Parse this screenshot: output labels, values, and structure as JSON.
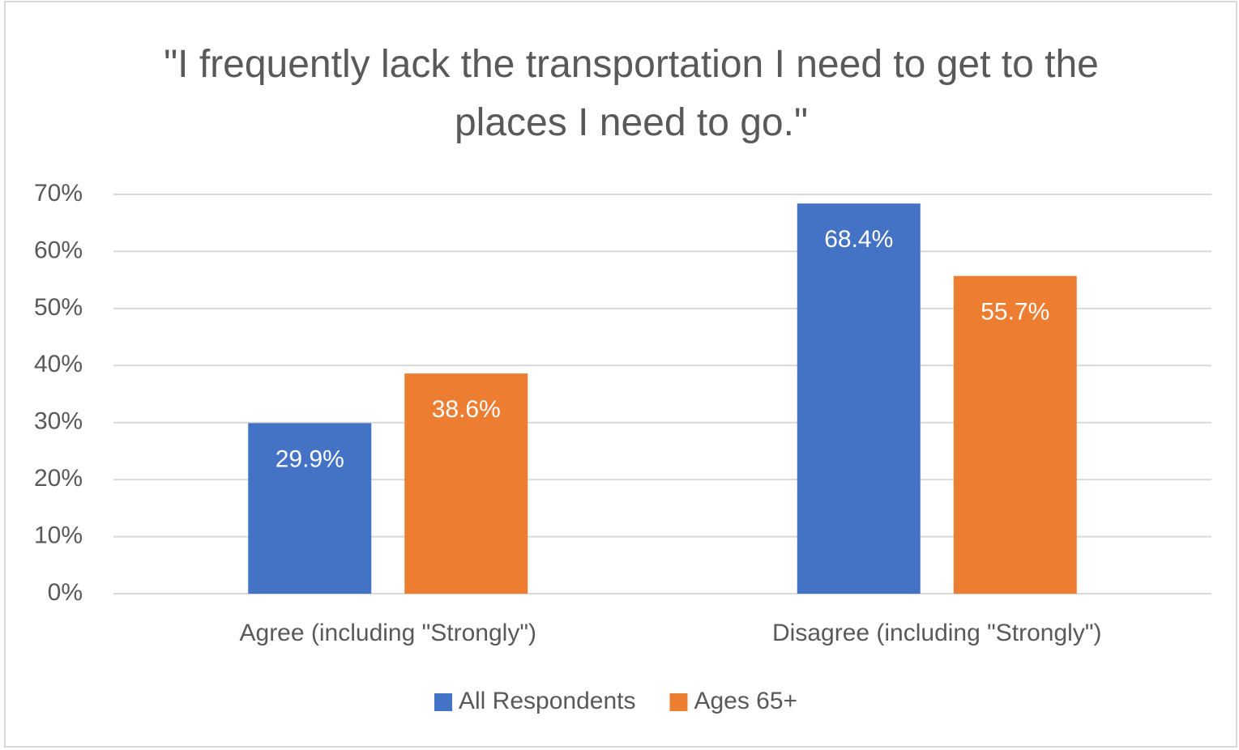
{
  "chart_data": {
    "type": "bar",
    "title": "\"I frequently lack the transportation I need to get to the places I need to go.\"",
    "categories": [
      "Agree (including \"Strongly\")",
      "Disagree (including \"Strongly\")"
    ],
    "series": [
      {
        "name": "All Respondents",
        "color": "#4472c4",
        "values": [
          29.9,
          68.4
        ],
        "value_labels": [
          "29.9%",
          "68.4%"
        ]
      },
      {
        "name": "Ages 65+",
        "color": "#ed7d31",
        "values": [
          38.6,
          55.7
        ],
        "value_labels": [
          "38.6%",
          "55.7%"
        ]
      }
    ],
    "ylim": [
      0,
      70
    ],
    "yticks": [
      {
        "value": 0,
        "label": "0%"
      },
      {
        "value": 10,
        "label": "10%"
      },
      {
        "value": 20,
        "label": "20%"
      },
      {
        "value": 30,
        "label": "30%"
      },
      {
        "value": 40,
        "label": "40%"
      },
      {
        "value": 50,
        "label": "50%"
      },
      {
        "value": 60,
        "label": "60%"
      },
      {
        "value": 70,
        "label": "70%"
      }
    ],
    "grid": true,
    "legend": "bottom"
  }
}
